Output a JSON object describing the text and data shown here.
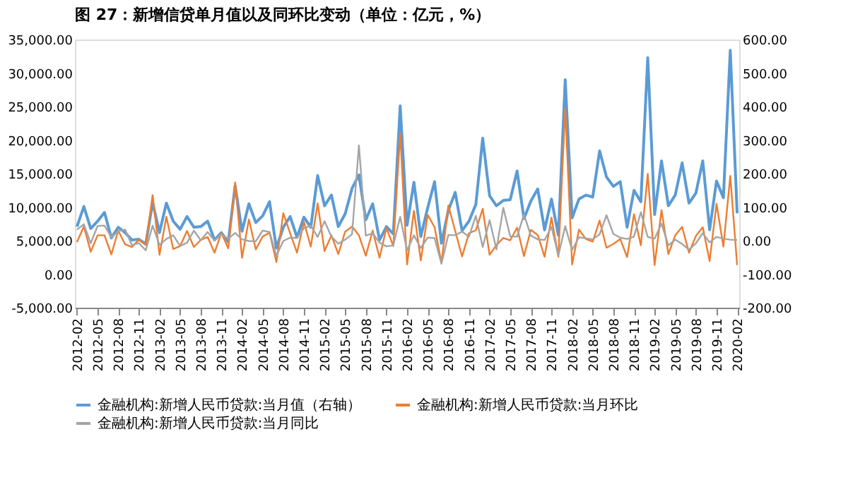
{
  "chart_data": {
    "type": "line",
    "title": "图 27：新增信贷单月值以及同环比变动（单位：亿元，%）",
    "categories": [
      "2012-02",
      null,
      null,
      "2012-05",
      null,
      null,
      "2012-08",
      null,
      null,
      "2012-11",
      null,
      null,
      "2013-02",
      null,
      null,
      "2013-05",
      null,
      null,
      "2013-08",
      null,
      null,
      "2013-11",
      null,
      null,
      "2014-02",
      null,
      null,
      "2014-05",
      null,
      null,
      "2014-08",
      null,
      null,
      "2014-11",
      null,
      null,
      "2015-02",
      null,
      null,
      "2015-05",
      null,
      null,
      "2015-08",
      null,
      null,
      "2015-11",
      null,
      null,
      "2016-02",
      null,
      null,
      "2016-05",
      null,
      null,
      "2016-08",
      null,
      null,
      "2016-11",
      null,
      null,
      "2017-02",
      null,
      null,
      "2017-05",
      null,
      null,
      "2017-08",
      null,
      null,
      "2017-11",
      null,
      null,
      "2018-02",
      null,
      null,
      "2018-05",
      null,
      null,
      "2018-08",
      null,
      null,
      "2018-11",
      null,
      null,
      "2019-02",
      null,
      null,
      "2019-05",
      null,
      null,
      "2019-08",
      null,
      null,
      "2019-11",
      null,
      null,
      "2020-02"
    ],
    "series": [
      {
        "name": "金融机构:新增人民币贷款:当月值（右轴）",
        "color": "#5b9bd5",
        "axis": "y",
        "values": [
          7100,
          10100,
          6800,
          7900,
          9200,
          5400,
          7000,
          6200,
          5100,
          5200,
          4500,
          10700,
          6200,
          10600,
          7900,
          6700,
          8600,
          7000,
          7100,
          7900,
          5100,
          6200,
          4800,
          13200,
          6400,
          10500,
          7700,
          8700,
          10800,
          3900,
          7000,
          8600,
          5500,
          8500,
          7000,
          14700,
          10200,
          11800,
          7100,
          9000,
          12800,
          14800,
          8100,
          10500,
          5100,
          7100,
          6000,
          25100,
          7300,
          13700,
          5600,
          9900,
          13800,
          4600,
          9500,
          12200,
          6500,
          7900,
          10400,
          20300,
          11700,
          10200,
          11000,
          11100,
          15400,
          8300,
          10900,
          12700,
          6600,
          11200,
          5800,
          29000,
          8400,
          11200,
          11800,
          11500,
          18400,
          14500,
          13100,
          13800,
          7000,
          12500,
          10800,
          32300,
          8900,
          16900,
          10200,
          11800,
          16600,
          10600,
          12100,
          16900,
          6600,
          13900,
          11400,
          33400,
          9100
        ]
      },
      {
        "name": "金融机构:新增人民币贷款:当月环比",
        "color": "#ed7d31",
        "axis": "y2",
        "values": [
          -4,
          42,
          -33,
          16,
          16,
          -41,
          30,
          -11,
          -19,
          3,
          -13,
          136,
          -42,
          71,
          -25,
          -16,
          29,
          -19,
          2,
          11,
          -36,
          23,
          -23,
          174,
          -51,
          63,
          -26,
          12,
          24,
          -64,
          82,
          22,
          -36,
          56,
          -18,
          111,
          -31,
          16,
          -40,
          27,
          42,
          16,
          -45,
          30,
          -51,
          38,
          -16,
          320,
          -71,
          89,
          -59,
          77,
          40,
          -66,
          105,
          29,
          -47,
          22,
          31,
          95,
          -42,
          -13,
          8,
          1,
          39,
          -46,
          32,
          17,
          -48,
          69,
          -48,
          396,
          -71,
          33,
          5,
          -3,
          60,
          -21,
          -10,
          5,
          -49,
          79,
          -14,
          199,
          -73,
          91,
          -40,
          16,
          41,
          -36,
          14,
          40,
          -61,
          110,
          -18,
          193,
          -73
        ]
      },
      {
        "name": "金融机构:新增人民币贷款:当月同比",
        "color": "#a5a5a5",
        "axis": "y2",
        "values": [
          33,
          49,
          -8,
          44,
          45,
          10,
          28,
          33,
          -14,
          -7,
          -29,
          45,
          -13,
          5,
          16,
          -16,
          -6,
          30,
          1,
          26,
          0,
          19,
          6,
          23,
          4,
          -1,
          -2,
          30,
          26,
          -45,
          -1,
          9,
          8,
          37,
          45,
          11,
          58,
          12,
          -9,
          3,
          19,
          284,
          15,
          22,
          -6,
          -17,
          -14,
          71,
          -29,
          16,
          -22,
          9,
          8,
          -69,
          17,
          16,
          27,
          12,
          74,
          -19,
          61,
          -26,
          98,
          13,
          12,
          78,
          15,
          4,
          2,
          41,
          -44,
          43,
          -28,
          10,
          7,
          4,
          19,
          76,
          20,
          9,
          5,
          12,
          85,
          11,
          6,
          51,
          -14,
          3,
          -10,
          -27,
          -8,
          22,
          -5,
          11,
          6,
          3,
          2
        ]
      }
    ],
    "ylim": [
      -5000,
      35000
    ],
    "yticks": [
      {
        "value": -5000,
        "label": "-5,000.00"
      },
      {
        "value": 0,
        "label": "0.00"
      },
      {
        "value": 5000,
        "label": "5,000.00"
      },
      {
        "value": 10000,
        "label": "10,000.00"
      },
      {
        "value": 15000,
        "label": "15,000.00"
      },
      {
        "value": 20000,
        "label": "20,000.00"
      },
      {
        "value": 25000,
        "label": "25,000.00"
      },
      {
        "value": 30000,
        "label": "30,000.00"
      },
      {
        "value": 35000,
        "label": "35,000.00"
      }
    ],
    "y2lim": [
      -200,
      600
    ],
    "y2ticks": [
      {
        "value": -200,
        "label": "-200.00"
      },
      {
        "value": -100,
        "label": "-100.00"
      },
      {
        "value": 0,
        "label": "0.00"
      },
      {
        "value": 100,
        "label": "100.00"
      },
      {
        "value": 200,
        "label": "200.00"
      },
      {
        "value": 300,
        "label": "300.00"
      },
      {
        "value": 400,
        "label": "400.00"
      },
      {
        "value": 500,
        "label": "500.00"
      },
      {
        "value": 600,
        "label": "600.00"
      }
    ],
    "grid": false,
    "legend": "bottom",
    "marker": "none",
    "line_style": "solid"
  }
}
